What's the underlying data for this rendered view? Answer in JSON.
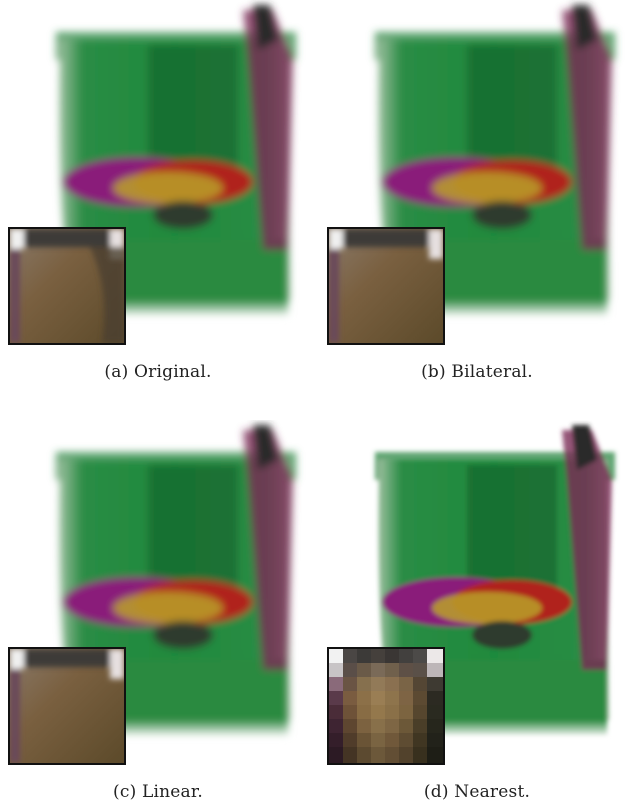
{
  "figure": {
    "panels": [
      {
        "id": "a",
        "caption": "(a) Original.",
        "style": "smooth"
      },
      {
        "id": "b",
        "caption": "(b) Bilateral.",
        "style": "smooth"
      },
      {
        "id": "c",
        "caption": "(c) Linear.",
        "style": "smooth"
      },
      {
        "id": "d",
        "caption": "(d) Nearest.",
        "style": "blocky"
      }
    ],
    "colors": {
      "green": "#1f8a3c",
      "dark_green": "#145c2a",
      "magenta": "#8a1f7a",
      "red": "#b0201e",
      "yellow": "#b9a22a",
      "inset_tone": "#6b5a3a"
    }
  }
}
